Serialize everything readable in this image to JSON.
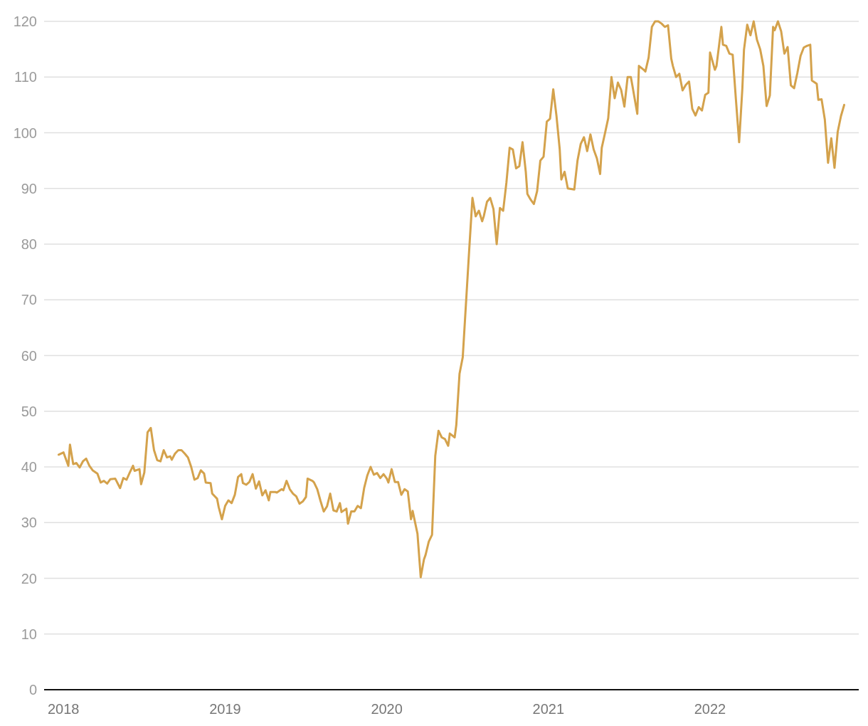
{
  "chart_data": {
    "type": "line",
    "x": [
      2017.97,
      2018.0,
      2018.03,
      2018.04,
      2018.06,
      2018.08,
      2018.1,
      2018.12,
      2018.14,
      2018.16,
      2018.18,
      2018.21,
      2018.23,
      2018.25,
      2018.27,
      2018.29,
      2018.32,
      2018.35,
      2018.37,
      2018.39,
      2018.41,
      2018.43,
      2018.44,
      2018.47,
      2018.48,
      2018.5,
      2018.52,
      2018.54,
      2018.56,
      2018.58,
      2018.6,
      2018.62,
      2018.64,
      2018.66,
      2018.67,
      2018.69,
      2018.71,
      2018.73,
      2018.75,
      2018.77,
      2018.79,
      2018.81,
      2018.83,
      2018.85,
      2018.87,
      2018.88,
      2018.91,
      2018.92,
      2018.95,
      2018.96,
      2018.98,
      2019.0,
      2019.02,
      2019.04,
      2019.06,
      2019.08,
      2019.1,
      2019.11,
      2019.13,
      2019.15,
      2019.17,
      2019.19,
      2019.21,
      2019.23,
      2019.25,
      2019.27,
      2019.28,
      2019.31,
      2019.32,
      2019.35,
      2019.36,
      2019.38,
      2019.4,
      2019.42,
      2019.44,
      2019.46,
      2019.48,
      2019.5,
      2019.51,
      2019.54,
      2019.55,
      2019.57,
      2019.59,
      2019.61,
      2019.63,
      2019.65,
      2019.67,
      2019.69,
      2019.71,
      2019.72,
      2019.75,
      2019.76,
      2019.78,
      2019.8,
      2019.82,
      2019.84,
      2019.86,
      2019.88,
      2019.9,
      2019.92,
      2019.94,
      2019.96,
      2019.98,
      2020.0,
      2020.01,
      2020.03,
      2020.05,
      2020.07,
      2020.09,
      2020.11,
      2020.13,
      2020.15,
      2020.16,
      2020.19,
      2020.21,
      2020.23,
      2020.24,
      2020.26,
      2020.28,
      2020.3,
      2020.32,
      2020.34,
      2020.36,
      2020.38,
      2020.39,
      2020.42,
      2020.43,
      2020.45,
      2020.47,
      2020.51,
      2020.53,
      2020.55,
      2020.57,
      2020.59,
      2020.6,
      2020.62,
      2020.64,
      2020.66,
      2020.68,
      2020.7,
      2020.72,
      2020.74,
      2020.76,
      2020.78,
      2020.8,
      2020.82,
      2020.84,
      2020.86,
      2020.87,
      2020.89,
      2020.91,
      2020.93,
      2020.95,
      2020.97,
      2020.99,
      2021.01,
      2021.03,
      2021.05,
      2021.07,
      2021.08,
      2021.1,
      2021.12,
      2021.16,
      2021.18,
      2021.2,
      2021.22,
      2021.24,
      2021.26,
      2021.28,
      2021.3,
      2021.32,
      2021.33,
      2021.35,
      2021.37,
      2021.39,
      2021.41,
      2021.43,
      2021.45,
      2021.47,
      2021.49,
      2021.51,
      2021.52,
      2021.55,
      2021.56,
      2021.59,
      2021.6,
      2021.62,
      2021.64,
      2021.66,
      2021.68,
      2021.7,
      2021.72,
      2021.74,
      2021.76,
      2021.77,
      2021.79,
      2021.81,
      2021.83,
      2021.85,
      2021.87,
      2021.89,
      2021.91,
      2021.93,
      2021.95,
      2021.97,
      2021.99,
      2022.0,
      2022.03,
      2022.04,
      2022.07,
      2022.08,
      2022.1,
      2022.12,
      2022.14,
      2022.16,
      2022.18,
      2022.2,
      2022.21,
      2022.23,
      2022.25,
      2022.27,
      2022.29,
      2022.31,
      2022.33,
      2022.35,
      2022.37,
      2022.39,
      2022.4,
      2022.42,
      2022.44,
      2022.46,
      2022.48,
      2022.5,
      2022.52,
      2022.54,
      2022.56,
      2022.58,
      2022.6,
      2022.62,
      2022.63,
      2022.66,
      2022.67,
      2022.69,
      2022.71,
      2022.73,
      2022.75,
      2022.77,
      2022.79,
      2022.81,
      2022.83
    ],
    "series": [
      {
        "color": "#d4a24c",
        "values": [
          42.2,
          42.6,
          40.2,
          44,
          40.5,
          40.7,
          39.9,
          41,
          41.5,
          40.2,
          39.4,
          38.8,
          37.2,
          37.5,
          37,
          37.8,
          37.9,
          36.2,
          38,
          37.7,
          39,
          40.2,
          39.3,
          39.6,
          36.9,
          39,
          46.2,
          47,
          43,
          41.2,
          41,
          43,
          41.7,
          41.9,
          41.3,
          42.4,
          43,
          43,
          42.4,
          41.7,
          40,
          37.7,
          38,
          39.4,
          38.8,
          37.2,
          37.1,
          35.2,
          34.3,
          32.8,
          30.6,
          33,
          34,
          33.5,
          35,
          38.2,
          38.7,
          37.1,
          36.8,
          37.3,
          38.7,
          36.1,
          37.4,
          34.9,
          35.8,
          34,
          35.5,
          35.5,
          35.4,
          36,
          35.8,
          37.5,
          36,
          35.2,
          34.7,
          33.4,
          33.8,
          34.6,
          37.9,
          37.5,
          37.2,
          36,
          33.9,
          32,
          32.9,
          35.2,
          32.2,
          32,
          33.5,
          31.9,
          32.5,
          29.8,
          32,
          32,
          33,
          32.6,
          36.2,
          38.5,
          40,
          38.6,
          38.9,
          38,
          38.7,
          37.9,
          37.2,
          39.6,
          37.3,
          37.3,
          35,
          36,
          35.6,
          30.6,
          32.1,
          28,
          20.2,
          23.4,
          24.2,
          26.6,
          27.8,
          42,
          46.5,
          45.3,
          45,
          43.8,
          46,
          45.3,
          47.5,
          56.7,
          59.7,
          79,
          88.3,
          85,
          86,
          84.1,
          85,
          87.6,
          88.3,
          86.3,
          80,
          86.5,
          86,
          91,
          97.3,
          97,
          93.6,
          94,
          98.3,
          93,
          89,
          88,
          87.2,
          89.5,
          95,
          95.7,
          102,
          102.5,
          107.8,
          103,
          97,
          91.6,
          93,
          90,
          89.8,
          95,
          98,
          99.2,
          96.7,
          99.7,
          97,
          95.4,
          92.6,
          97.3,
          99.9,
          102.6,
          110,
          106.2,
          109,
          107.7,
          104.7,
          110,
          110,
          108.4,
          103.4,
          112,
          111.3,
          111,
          113.5,
          119,
          120,
          120,
          119.6,
          119,
          119.3,
          113.3,
          112,
          110,
          110.6,
          107.6,
          108.6,
          109.2,
          104.3,
          103.1,
          104.6,
          104,
          106.8,
          107.2,
          114.4,
          111.3,
          112,
          119,
          115.8,
          115.6,
          114.2,
          114,
          106,
          98.3,
          108,
          114.9,
          119.4,
          117.5,
          120,
          116.7,
          115,
          112,
          104.8,
          106.7,
          119,
          118.4,
          120,
          118.2,
          114.2,
          115.4,
          108.5,
          108,
          110.7,
          113.8,
          115.3,
          115.6,
          115.8,
          109.4,
          108.8,
          105.9,
          106,
          102.4,
          94.6,
          99,
          93.7,
          100.2,
          103,
          105
        ]
      }
    ],
    "xlim": [
      2017.88,
      2022.92
    ],
    "xticks": [
      2018,
      2019,
      2020,
      2021,
      2022
    ],
    "ylim": [
      0,
      120
    ],
    "yticks": [
      0,
      10,
      20,
      30,
      40,
      50,
      60,
      70,
      80,
      90,
      100,
      110,
      120
    ],
    "grid": "y",
    "marker": "none",
    "line_style": "solid"
  }
}
